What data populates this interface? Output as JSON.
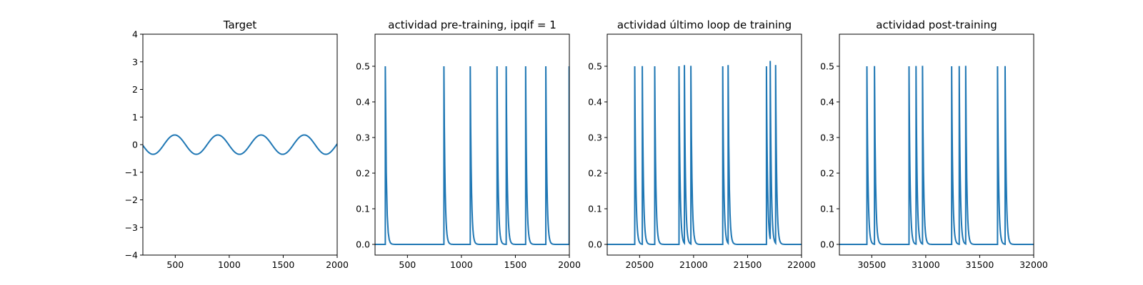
{
  "chart_data": [
    {
      "type": "line",
      "title": "Target",
      "xlabel": "",
      "ylabel": "",
      "xlim": [
        200,
        2000
      ],
      "ylim": [
        -4,
        4
      ],
      "xticks": [
        500,
        1000,
        1500,
        2000
      ],
      "yticks": [
        -4,
        -3,
        -2,
        -1,
        0,
        1,
        2,
        3,
        4
      ],
      "color": "#1f77b4",
      "signal": {
        "kind": "sine",
        "amplitude": 0.35,
        "period": 400,
        "peak_x": 495
      }
    },
    {
      "type": "line",
      "title": "actividad pre-training, ipqif = 1",
      "xlabel": "",
      "ylabel": "",
      "xlim": [
        200,
        2000
      ],
      "ylim": [
        -0.03,
        0.59
      ],
      "xticks": [
        500,
        1000,
        1500,
        2000
      ],
      "yticks": [
        0.0,
        0.1,
        0.2,
        0.3,
        0.4,
        0.5
      ],
      "color": "#1f77b4",
      "signal": {
        "kind": "spikes",
        "start_x": 200,
        "spike_times": [
          295,
          838,
          1082,
          1330,
          1415,
          1595,
          1782,
          1998
        ],
        "spike_height": 0.5,
        "decay": 10
      }
    },
    {
      "type": "line",
      "title": "actividad último loop de training",
      "xlabel": "",
      "ylabel": "",
      "xlim": [
        20200,
        22000
      ],
      "ylim": [
        -0.03,
        0.59
      ],
      "xticks": [
        20500,
        21000,
        21500,
        22000
      ],
      "yticks": [
        0.0,
        0.1,
        0.2,
        0.3,
        0.4,
        0.5
      ],
      "color": "#1f77b4",
      "signal": {
        "kind": "spikes",
        "start_x": 20200,
        "spike_times": [
          20455,
          20525,
          20640,
          20865,
          20915,
          20975,
          21270,
          21320,
          21675,
          21710,
          21760
        ],
        "spike_height": 0.5,
        "decay": 10
      }
    },
    {
      "type": "line",
      "title": "actividad post-training",
      "xlabel": "",
      "ylabel": "",
      "xlim": [
        30200,
        32000
      ],
      "ylim": [
        -0.03,
        0.59
      ],
      "xticks": [
        30500,
        31000,
        31500,
        32000
      ],
      "yticks": [
        0.0,
        0.1,
        0.2,
        0.3,
        0.4,
        0.5
      ],
      "color": "#1f77b4",
      "signal": {
        "kind": "spikes",
        "start_x": 30200,
        "spike_times": [
          30455,
          30525,
          30845,
          30910,
          30970,
          31240,
          31310,
          31370,
          31665,
          31735
        ],
        "spike_height": 0.5,
        "decay": 10
      }
    }
  ]
}
